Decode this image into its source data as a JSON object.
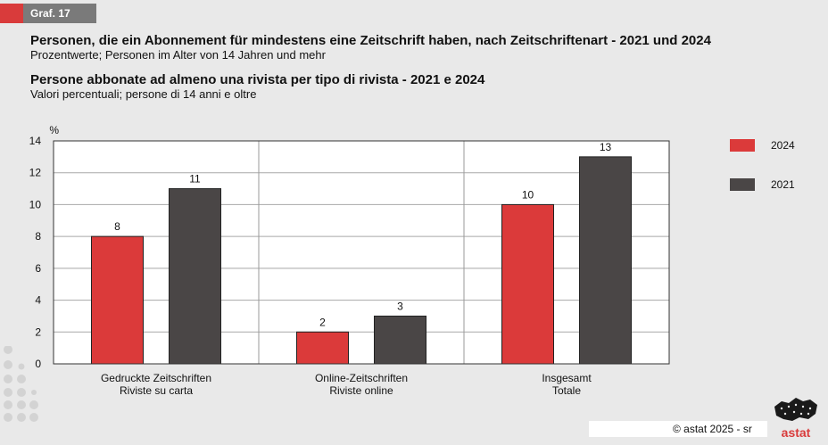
{
  "badge": {
    "label": "Graf. 17"
  },
  "header": {
    "title_de": "Personen, die ein Abonnement für mindestens eine Zeitschrift haben, nach Zeitschriftenart - 2021 und 2024",
    "subtitle_de": "Prozentwerte; Personen im Alter von 14 Jahren und mehr",
    "title_it": "Persone abbonate ad almeno una rivista per tipo di rivista - 2021 e 2024",
    "subtitle_it": "Valori percentuali; persone di 14 anni e oltre"
  },
  "chart_data": {
    "type": "bar",
    "categories": [
      [
        "Gedruckte Zeitschriften",
        "Riviste su carta"
      ],
      [
        "Online-Zeitschriften",
        "Riviste online"
      ],
      [
        "Insgesamt",
        "Totale"
      ]
    ],
    "series": [
      {
        "name": "2024",
        "color": "#db3a3a",
        "values": [
          8,
          2,
          10
        ]
      },
      {
        "name": "2021",
        "color": "#4a4646",
        "values": [
          11,
          3,
          13
        ]
      }
    ],
    "ylabel": "%",
    "ylim": [
      0,
      14
    ],
    "yticks": [
      0,
      2,
      4,
      6,
      8,
      10,
      12,
      14
    ],
    "grid": true,
    "legend_position": "right"
  },
  "footer": {
    "copyright": "© astat 2025 - sr",
    "logo_text": "astat"
  }
}
